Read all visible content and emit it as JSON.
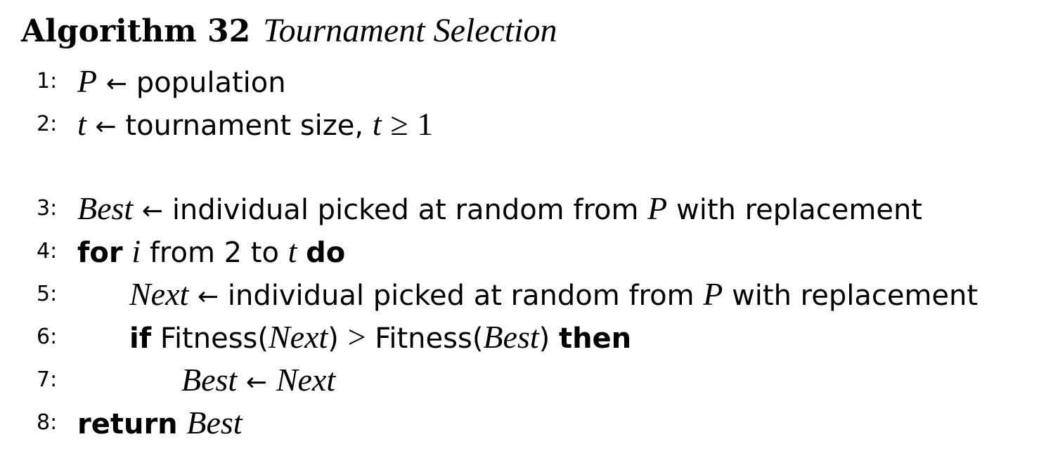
{
  "title": {
    "label": "Algorithm 32",
    "name": "Tournament Selection"
  },
  "symbols": {
    "arrow": "←",
    "geq": "≥",
    "gt": ">"
  },
  "lines": [
    {
      "num": "1:",
      "lhs": "P",
      "text": "population"
    },
    {
      "num": "2:",
      "lhs": "t",
      "text": "tournament size,",
      "cond_var": "t",
      "cond_val": "1"
    },
    {
      "num": "3:",
      "lhs": "Best",
      "text": "individual picked at random from",
      "var": "P",
      "text2": "with replacement"
    },
    {
      "num": "4:",
      "kw": "for",
      "var": "i",
      "text": "from 2 to",
      "var2": "t",
      "kw2": "do"
    },
    {
      "num": "5:",
      "lhs": "Next",
      "text": "individual picked at random from",
      "var": "P",
      "text2": "with replacement"
    },
    {
      "num": "6:",
      "kw": "if",
      "fn1": "Fitness(",
      "arg1": "Next",
      "close1": ")",
      "fn2": "Fitness(",
      "arg2": "Best",
      "close2": ")",
      "kw2": "then"
    },
    {
      "num": "7:",
      "lhs": "Best",
      "rhs": "Next"
    },
    {
      "num": "8:",
      "kw": "return",
      "var": "Best"
    }
  ]
}
